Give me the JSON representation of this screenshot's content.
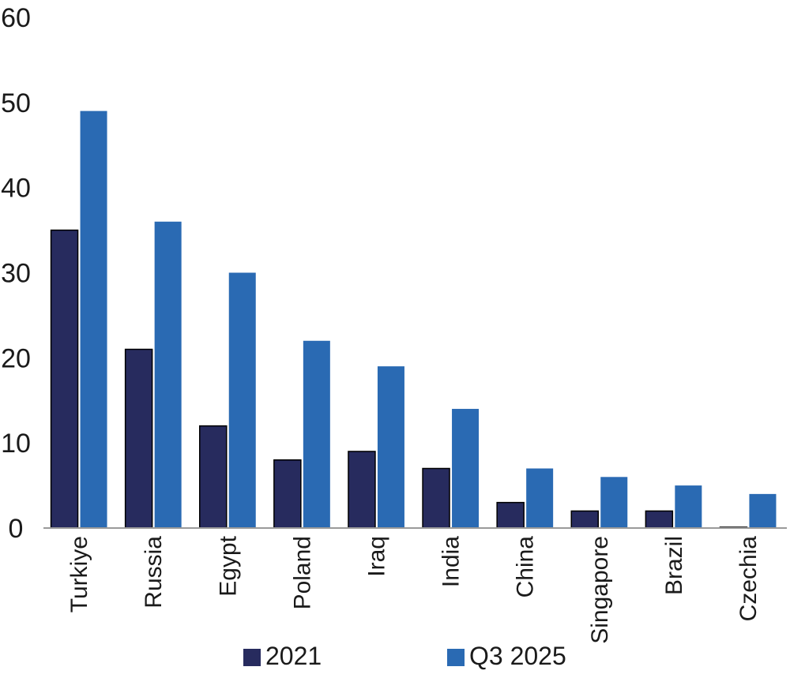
{
  "chart_data": {
    "type": "bar",
    "title": "",
    "xlabel": "",
    "ylabel": "",
    "categories": [
      "Turkiye",
      "Russia",
      "Egypt",
      "Poland",
      "Iraq",
      "India",
      "China",
      "Singapore",
      "Brazil",
      "Czechia"
    ],
    "series": [
      {
        "name": "2021",
        "color": "#272b5e",
        "values": [
          35,
          21,
          12,
          8,
          9,
          7,
          3,
          2,
          2,
          0.1
        ]
      },
      {
        "name": "Q3 2025",
        "color": "#2a6ab3",
        "values": [
          49,
          36,
          30,
          22,
          19,
          14,
          7,
          6,
          5,
          4
        ]
      }
    ],
    "ylim": [
      0,
      60
    ],
    "yticks": [
      0,
      10,
      20,
      30,
      40,
      50,
      60
    ],
    "grid": false,
    "legend": "bottom"
  }
}
